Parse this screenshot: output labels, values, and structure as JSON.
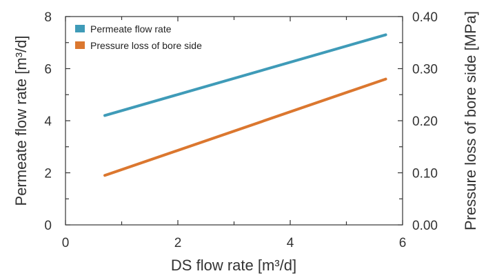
{
  "chart_data": {
    "type": "line",
    "xlabel": "DS flow rate [m³/d]",
    "ylabel_left": "Permeate flow rate [m³/d]",
    "ylabel_right": "Pressure loss of bore side [MPa]",
    "xlim": [
      0,
      6
    ],
    "ylim_left": [
      0,
      8
    ],
    "ylim_right": [
      0.0,
      0.4
    ],
    "x_ticks": [
      0,
      2,
      4,
      6
    ],
    "x_tick_labels": [
      "0",
      "2",
      "4",
      "6"
    ],
    "y_left_ticks": [
      0,
      2,
      4,
      6,
      8
    ],
    "y_left_tick_labels": [
      "0",
      "2",
      "4",
      "6",
      "8"
    ],
    "y_right_ticks": [
      0.0,
      0.1,
      0.2,
      0.3,
      0.4
    ],
    "y_right_tick_labels": [
      "0.00",
      "0.10",
      "0.20",
      "0.30",
      "0.40"
    ],
    "grid": false,
    "legend_position": "top-left",
    "series": [
      {
        "name": "Permeate flow rate",
        "axis": "left",
        "color": "#3f9bb8",
        "x": [
          0.7,
          5.7
        ],
        "values": [
          4.2,
          7.3
        ]
      },
      {
        "name": "Pressure loss of bore side",
        "axis": "right",
        "color": "#db772f",
        "x": [
          0.7,
          5.7
        ],
        "values": [
          0.095,
          0.28
        ]
      }
    ]
  }
}
